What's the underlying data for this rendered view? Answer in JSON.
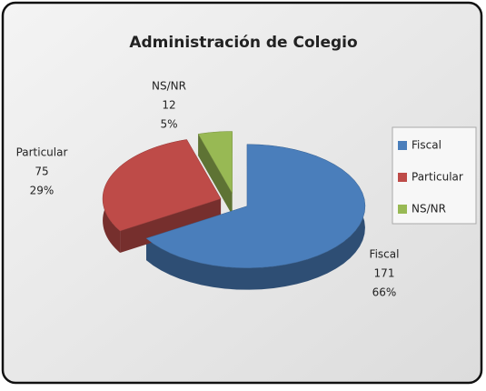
{
  "chart_data": {
    "type": "pie3d",
    "title": "Administración de Colegio",
    "categories": [
      "Fiscal",
      "Particular",
      "NS/NR"
    ],
    "values": [
      171,
      75,
      12
    ],
    "percent_labels": [
      "66%",
      "29%",
      "5%"
    ],
    "colors": [
      "#4a7ebb",
      "#be4b48",
      "#98b954"
    ],
    "legend": "right"
  }
}
